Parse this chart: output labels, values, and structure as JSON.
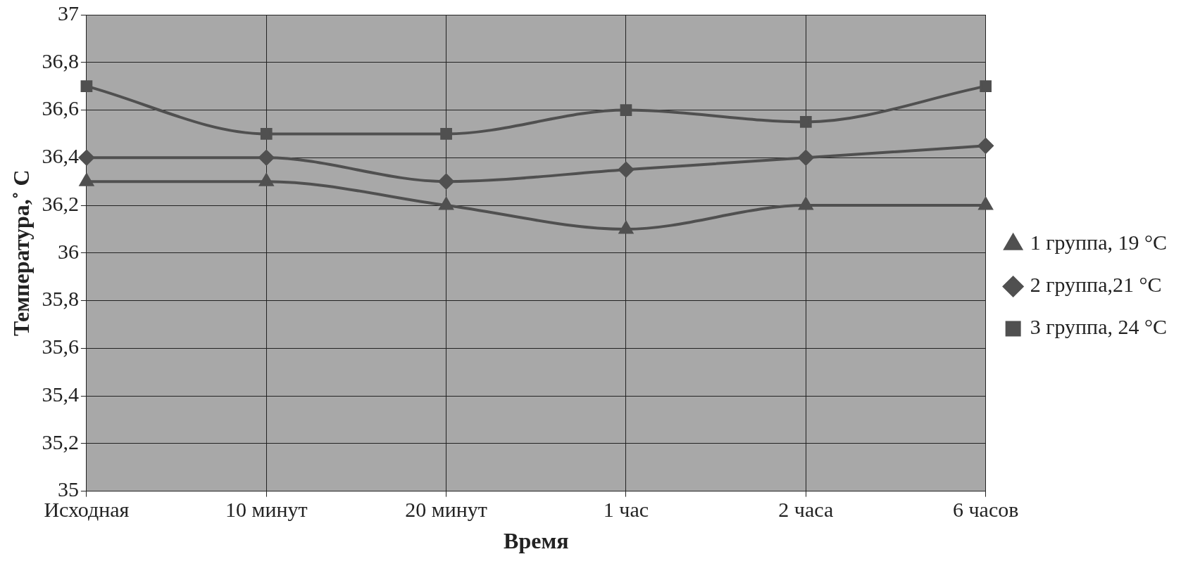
{
  "chart_data": {
    "type": "line",
    "xlabel": "Время",
    "ylabel": "Температура,˚ С",
    "categories": [
      "Исходная",
      "10 минут",
      "20 минут",
      "1 час",
      "2 часа",
      "6 часов"
    ],
    "series": [
      {
        "name": "1 группа, 19 °С",
        "color": "#505050",
        "marker": "triangle",
        "values": [
          36.3,
          36.3,
          36.2,
          36.1,
          36.2,
          36.2
        ]
      },
      {
        "name": "2 группа,21 °С",
        "color": "#505050",
        "marker": "diamond",
        "values": [
          36.4,
          36.4,
          36.3,
          36.35,
          36.4,
          36.45
        ]
      },
      {
        "name": "3 группа, 24 °С",
        "color": "#505050",
        "marker": "square",
        "values": [
          36.7,
          36.5,
          36.5,
          36.6,
          36.55,
          36.7
        ]
      }
    ],
    "ylim": [
      35,
      37
    ],
    "yticks": [
      35,
      {
        "value": 35.2,
        "label": "35,2"
      },
      {
        "value": 35.4,
        "label": "35,4"
      },
      {
        "value": 35.6,
        "label": "35,6"
      },
      {
        "value": 35.8,
        "label": "35,8"
      },
      36,
      {
        "value": 36.2,
        "label": "36,2"
      },
      {
        "value": 36.4,
        "label": "36,4"
      },
      {
        "value": 36.6,
        "label": "36,6"
      },
      {
        "value": 36.8,
        "label": "36,8"
      },
      37
    ],
    "grid": true,
    "legend": "right",
    "line_style": "solid"
  }
}
